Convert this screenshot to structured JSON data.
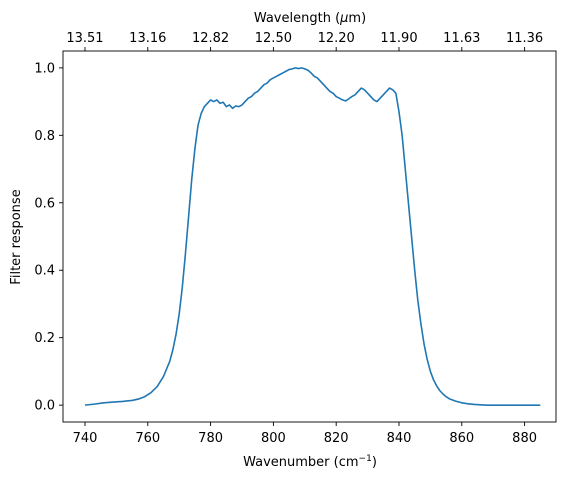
{
  "chart_data": {
    "type": "line",
    "xlabel": "Wavenumber (cm",
    "xlabel_sup": "−1",
    "xlabel_tail": ")",
    "ylabel": "Filter response",
    "top_xlabel": "Wavelength (",
    "top_xlabel_mu": "μ",
    "top_xlabel_tail": "m)",
    "xlim": [
      733,
      890
    ],
    "ylim": [
      -0.05,
      1.05
    ],
    "x_ticks": [
      740,
      760,
      780,
      800,
      820,
      840,
      860,
      880
    ],
    "y_ticks": [
      0.0,
      0.2,
      0.4,
      0.6,
      0.8,
      1.0
    ],
    "y_tick_labels": [
      "0.0",
      "0.2",
      "0.4",
      "0.6",
      "0.8",
      "1.0"
    ],
    "top_ticks": [
      {
        "wavenumber": 740,
        "label": "13.51"
      },
      {
        "wavenumber": 760,
        "label": "13.16"
      },
      {
        "wavenumber": 780,
        "label": "12.82"
      },
      {
        "wavenumber": 800,
        "label": "12.50"
      },
      {
        "wavenumber": 820,
        "label": "12.20"
      },
      {
        "wavenumber": 840,
        "label": "11.90"
      },
      {
        "wavenumber": 860,
        "label": "11.63"
      },
      {
        "wavenumber": 880,
        "label": "11.36"
      }
    ],
    "series": [
      {
        "color": "#1f77b4",
        "x": [
          740,
          743,
          746,
          749,
          752,
          755,
          757,
          759,
          761,
          763,
          765,
          767,
          768,
          769,
          770,
          771,
          772,
          773,
          774,
          775,
          776,
          777,
          778,
          779,
          780,
          781,
          782,
          783,
          784,
          785,
          786,
          787,
          788,
          789,
          790,
          791,
          792,
          793,
          794,
          795,
          796,
          797,
          798,
          799,
          800,
          801,
          802,
          803,
          804,
          805,
          806,
          807,
          808,
          809,
          810,
          811,
          812,
          813,
          814,
          815,
          816,
          817,
          818,
          819,
          820,
          821,
          822,
          823,
          824,
          825,
          826,
          827,
          828,
          829,
          830,
          831,
          832,
          833,
          834,
          835,
          836,
          837,
          838,
          839,
          840,
          841,
          842,
          843,
          844,
          845,
          846,
          847,
          848,
          849,
          850,
          851,
          852,
          853,
          854,
          855,
          856,
          858,
          860,
          862,
          864,
          866,
          868,
          870,
          872,
          875,
          880,
          885
        ],
        "y": [
          0.0,
          0.003,
          0.007,
          0.009,
          0.011,
          0.014,
          0.018,
          0.025,
          0.037,
          0.055,
          0.085,
          0.13,
          0.165,
          0.21,
          0.27,
          0.35,
          0.45,
          0.56,
          0.67,
          0.76,
          0.83,
          0.865,
          0.885,
          0.895,
          0.905,
          0.9,
          0.905,
          0.895,
          0.898,
          0.885,
          0.89,
          0.88,
          0.887,
          0.885,
          0.89,
          0.9,
          0.91,
          0.915,
          0.925,
          0.93,
          0.94,
          0.95,
          0.955,
          0.965,
          0.97,
          0.975,
          0.98,
          0.985,
          0.99,
          0.995,
          0.997,
          1.0,
          0.998,
          1.0,
          0.997,
          0.993,
          0.985,
          0.975,
          0.97,
          0.96,
          0.95,
          0.94,
          0.93,
          0.925,
          0.915,
          0.91,
          0.905,
          0.902,
          0.908,
          0.915,
          0.92,
          0.93,
          0.94,
          0.935,
          0.925,
          0.915,
          0.905,
          0.9,
          0.91,
          0.92,
          0.93,
          0.94,
          0.935,
          0.925,
          0.87,
          0.8,
          0.7,
          0.6,
          0.5,
          0.4,
          0.31,
          0.24,
          0.18,
          0.135,
          0.1,
          0.075,
          0.057,
          0.043,
          0.033,
          0.025,
          0.019,
          0.012,
          0.007,
          0.004,
          0.002,
          0.001,
          0.0,
          0.0,
          0.0,
          0.0,
          0.0,
          0.0
        ]
      }
    ]
  }
}
